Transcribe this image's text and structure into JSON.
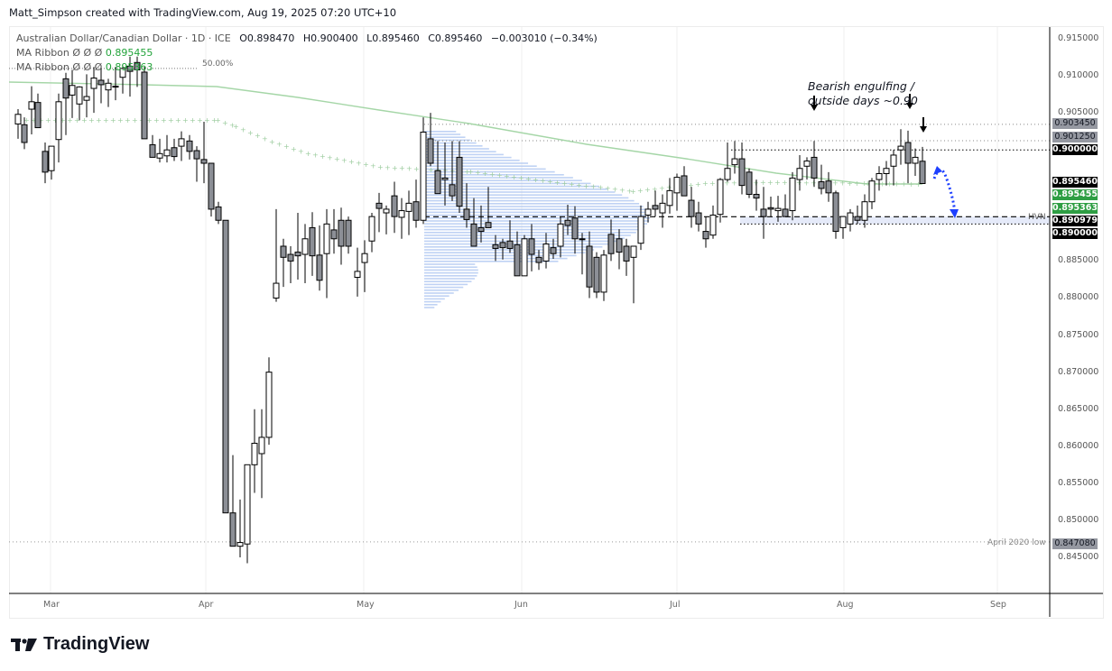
{
  "header": {
    "credit": "Matt_Simpson created with TradingView.com, Aug 19, 2025 07:20 UTC+10"
  },
  "legend": {
    "symbol": "Australian Dollar/Canadian Dollar · 1D · ICE",
    "open": "O0.898470",
    "high": "H0.900400",
    "low": "L0.895460",
    "close": "C0.895460",
    "change": "−0.003010 (−0.34%)",
    "ma1_label": "MA Ribbon  Ø  Ø  Ø",
    "ma1_value": "0.895455",
    "ma2_label": "MA Ribbon  Ø  Ø  Ø",
    "ma2_value": "0.895363",
    "fib_label": "50.00%"
  },
  "annotations": {
    "note_line1": "Bearish engulfing /",
    "note_line2": "outside days ~0.90",
    "hvn_label": "HVN",
    "april_low_label": "April 2020 low"
  },
  "price_axis": {
    "ticks": [
      "0.915000",
      "0.910000",
      "0.905000",
      "0.885000",
      "0.880000",
      "0.875000",
      "0.870000",
      "0.865000",
      "0.860000",
      "0.855000",
      "0.850000",
      "0.845000"
    ],
    "tags": [
      {
        "value": "0.903450",
        "style": "grey"
      },
      {
        "value": "0.901250",
        "style": "grey"
      },
      {
        "value": "0.900000",
        "style": "black"
      },
      {
        "value": "0.895460",
        "style": "black"
      },
      {
        "value": "0.895455",
        "style": "green"
      },
      {
        "value": "0.895363",
        "style": "green"
      },
      {
        "value": "0.890979",
        "style": "black"
      },
      {
        "value": "0.890000",
        "style": "black"
      },
      {
        "value": "0.847080",
        "style": "grey"
      }
    ]
  },
  "time_axis": {
    "months": [
      "Mar",
      "Apr",
      "May",
      "Jun",
      "Jul",
      "Aug",
      "Sep"
    ]
  },
  "footer": {
    "brand": "TradingView"
  },
  "colors": {
    "bull_body": "#ffffff",
    "bear_body": "#8c8f96",
    "outline": "#000000",
    "ma_line": "#a5d6a7",
    "volume_profile": "#aac3f0",
    "arrow_blue": "#1e40ff"
  },
  "chart_data": {
    "type": "candlestick",
    "title": "Australian Dollar/Canadian Dollar · 1D · ICE",
    "xlabel": "",
    "ylabel": "Price",
    "ylim": [
      0.8425,
      0.917
    ],
    "x_ticks": [
      "Mar",
      "Apr",
      "May",
      "Jun",
      "Jul",
      "Aug",
      "Sep"
    ],
    "last_ohlc": {
      "open": 0.89847,
      "high": 0.9004,
      "low": 0.89546,
      "close": 0.89546,
      "change": -0.00301,
      "change_pct": -0.34
    },
    "moving_averages": [
      {
        "name": "MA Ribbon (solid)",
        "value": 0.895455
      },
      {
        "name": "MA Ribbon (dotted)",
        "value": 0.895363
      }
    ],
    "horizontal_levels": [
      {
        "value": 0.90345,
        "style": "dotted"
      },
      {
        "value": 0.90125,
        "style": "dotted"
      },
      {
        "value": 0.9,
        "style": "dotted"
      },
      {
        "value": 0.890979,
        "style": "dashed",
        "label": "HVN"
      },
      {
        "value": 0.89,
        "style": "dotted"
      },
      {
        "value": 0.84708,
        "style": "dotted",
        "label": "April 2020 low"
      },
      {
        "value": 0.911,
        "style": "dotted",
        "label": "50.00%"
      }
    ],
    "candles": [
      [
        20,
        0.9035,
        0.9055,
        0.9015,
        0.9048
      ],
      [
        27,
        0.9034,
        0.9044,
        0.9001,
        0.901
      ],
      [
        35,
        0.9055,
        0.9086,
        0.9021,
        0.9065
      ],
      [
        42,
        0.9064,
        0.9076,
        0.903,
        0.903
      ],
      [
        50,
        0.8998,
        0.901,
        0.8955,
        0.897
      ],
      [
        57,
        0.8972,
        0.9002,
        0.896,
        0.9005
      ],
      [
        65,
        0.9014,
        0.9076,
        0.8983,
        0.9065
      ],
      [
        73,
        0.9096,
        0.9104,
        0.902,
        0.907
      ],
      [
        80,
        0.9074,
        0.9108,
        0.9043,
        0.9087
      ],
      [
        88,
        0.9062,
        0.9086,
        0.904,
        0.9085
      ],
      [
        96,
        0.9067,
        0.9102,
        0.9044,
        0.9072
      ],
      [
        104,
        0.9083,
        0.9112,
        0.905,
        0.9097
      ],
      [
        112,
        0.9094,
        0.911,
        0.9063,
        0.9088
      ],
      [
        120,
        0.9081,
        0.9096,
        0.9058,
        0.909
      ],
      [
        128,
        0.9085,
        0.9112,
        0.9067,
        0.9086
      ],
      [
        136,
        0.9098,
        0.9114,
        0.9076,
        0.911
      ],
      [
        144,
        0.9113,
        0.9126,
        0.9072,
        0.9106
      ],
      [
        152,
        0.9118,
        0.9126,
        0.9085,
        0.9108
      ],
      [
        160,
        0.9105,
        0.9112,
        0.9015,
        0.9015
      ],
      [
        169,
        0.9007,
        0.902,
        0.899,
        0.899
      ],
      [
        177,
        0.8989,
        0.9015,
        0.8983,
        0.8995
      ],
      [
        185,
        0.8992,
        0.902,
        0.8983,
        0.9
      ],
      [
        193,
        0.9003,
        0.9015,
        0.8985,
        0.8991
      ],
      [
        201,
        0.9005,
        0.9025,
        0.8985,
        0.9015
      ],
      [
        210,
        0.9012,
        0.902,
        0.8987,
        0.8998
      ],
      [
        218,
        0.8999,
        0.9005,
        0.8957,
        0.8988
      ],
      [
        226,
        0.8987,
        0.9038,
        0.8955,
        0.8982
      ],
      [
        234,
        0.8982,
        0.8982,
        0.891,
        0.892
      ],
      [
        242,
        0.8923,
        0.893,
        0.89,
        0.8905
      ],
      [
        250,
        0.8905,
        0.8905,
        0.851,
        0.851
      ],
      [
        258,
        0.851,
        0.8588,
        0.8473,
        0.8465
      ],
      [
        266,
        0.8465,
        0.8528,
        0.845,
        0.847
      ],
      [
        274,
        0.8468,
        0.856,
        0.8442,
        0.8575
      ],
      [
        282,
        0.8575,
        0.865,
        0.8537,
        0.8604
      ],
      [
        290,
        0.859,
        0.865,
        0.853,
        0.8612
      ],
      [
        298,
        0.8612,
        0.872,
        0.8602,
        0.87
      ],
      [
        306,
        0.88,
        0.892,
        0.8795,
        0.882
      ],
      [
        314,
        0.887,
        0.888,
        0.8815,
        0.8855
      ],
      [
        322,
        0.8859,
        0.887,
        0.882,
        0.885
      ],
      [
        330,
        0.8862,
        0.8915,
        0.8825,
        0.8857
      ],
      [
        338,
        0.8859,
        0.89,
        0.882,
        0.888
      ],
      [
        346,
        0.8895,
        0.8916,
        0.883,
        0.8857
      ],
      [
        354,
        0.8858,
        0.8898,
        0.881,
        0.8824
      ],
      [
        362,
        0.886,
        0.892,
        0.88,
        0.89
      ],
      [
        370,
        0.8892,
        0.892,
        0.886,
        0.888
      ],
      [
        378,
        0.8905,
        0.8922,
        0.8845,
        0.887
      ],
      [
        386,
        0.8905,
        0.891,
        0.886,
        0.887
      ],
      [
        396,
        0.8828,
        0.8868,
        0.8802,
        0.8836
      ],
      [
        404,
        0.8848,
        0.8878,
        0.8808,
        0.886
      ],
      [
        412,
        0.8877,
        0.8915,
        0.8862,
        0.891
      ],
      [
        420,
        0.8928,
        0.8942,
        0.8889,
        0.8921
      ],
      [
        428,
        0.8915,
        0.8925,
        0.8886,
        0.892
      ],
      [
        437,
        0.8938,
        0.8957,
        0.8888,
        0.891
      ],
      [
        445,
        0.8909,
        0.8935,
        0.888,
        0.8918
      ],
      [
        453,
        0.8917,
        0.8945,
        0.8885,
        0.8928
      ],
      [
        461,
        0.893,
        0.896,
        0.8895,
        0.8905
      ],
      [
        469,
        0.8905,
        0.9044,
        0.89,
        0.9024
      ],
      [
        477,
        0.9015,
        0.905,
        0.8978,
        0.8982
      ],
      [
        485,
        0.8972,
        0.9012,
        0.8942,
        0.8941
      ],
      [
        493,
        0.896,
        0.901,
        0.8925,
        0.8962
      ],
      [
        501,
        0.8953,
        0.9012,
        0.8931,
        0.8938
      ],
      [
        509,
        0.899,
        0.9012,
        0.8915,
        0.8924
      ],
      [
        517,
        0.892,
        0.8955,
        0.8895,
        0.8906
      ],
      [
        525,
        0.89,
        0.8935,
        0.8872,
        0.887
      ],
      [
        533,
        0.8895,
        0.8925,
        0.8875,
        0.889
      ],
      [
        541,
        0.8902,
        0.895,
        0.8895,
        0.8895
      ],
      [
        549,
        0.8872,
        0.8885,
        0.885,
        0.8867
      ],
      [
        557,
        0.8875,
        0.888,
        0.8852,
        0.8868
      ],
      [
        565,
        0.8877,
        0.8905,
        0.8861,
        0.8867
      ],
      [
        573,
        0.8872,
        0.889,
        0.883,
        0.883
      ],
      [
        581,
        0.883,
        0.8885,
        0.883,
        0.888
      ],
      [
        589,
        0.888,
        0.89,
        0.8836,
        0.8859
      ],
      [
        597,
        0.8855,
        0.8865,
        0.8838,
        0.8848
      ],
      [
        605,
        0.885,
        0.8888,
        0.884,
        0.8873
      ],
      [
        613,
        0.8868,
        0.888,
        0.8853,
        0.886
      ],
      [
        621,
        0.887,
        0.891,
        0.8855,
        0.89
      ],
      [
        629,
        0.8905,
        0.8926,
        0.8885,
        0.8898
      ],
      [
        637,
        0.8908,
        0.8924,
        0.886,
        0.888
      ],
      [
        645,
        0.888,
        0.8888,
        0.8832,
        0.888
      ],
      [
        653,
        0.887,
        0.889,
        0.88,
        0.8815
      ],
      [
        661,
        0.8855,
        0.8862,
        0.88,
        0.8808
      ],
      [
        669,
        0.8808,
        0.8865,
        0.8796,
        0.8858
      ],
      [
        677,
        0.8886,
        0.8906,
        0.885,
        0.886
      ],
      [
        686,
        0.888,
        0.8893,
        0.8839,
        0.8862
      ],
      [
        694,
        0.887,
        0.888,
        0.883,
        0.885
      ],
      [
        702,
        0.8855,
        0.887,
        0.8793,
        0.887
      ],
      [
        710,
        0.8874,
        0.8925,
        0.8865,
        0.891
      ],
      [
        718,
        0.8912,
        0.893,
        0.8902,
        0.892
      ],
      [
        726,
        0.8925,
        0.8945,
        0.891,
        0.892
      ],
      [
        734,
        0.8915,
        0.894,
        0.8895,
        0.8928
      ],
      [
        742,
        0.8925,
        0.8962,
        0.8914,
        0.8945
      ],
      [
        750,
        0.8942,
        0.8968,
        0.8918,
        0.8963
      ],
      [
        758,
        0.8965,
        0.8978,
        0.8945,
        0.8938
      ],
      [
        766,
        0.8932,
        0.895,
        0.8895,
        0.891
      ],
      [
        774,
        0.8915,
        0.893,
        0.889,
        0.89
      ],
      [
        782,
        0.889,
        0.891,
        0.8868,
        0.888
      ],
      [
        790,
        0.8885,
        0.8925,
        0.888,
        0.8912
      ],
      [
        798,
        0.8913,
        0.8962,
        0.8902,
        0.896
      ],
      [
        806,
        0.896,
        0.901,
        0.8957,
        0.8975
      ],
      [
        814,
        0.898,
        0.9012,
        0.8968,
        0.8988
      ],
      [
        822,
        0.8988,
        0.901,
        0.894,
        0.8952
      ],
      [
        830,
        0.897,
        0.8975,
        0.8935,
        0.894
      ],
      [
        838,
        0.894,
        0.896,
        0.8918,
        0.8935
      ],
      [
        846,
        0.892,
        0.895,
        0.888,
        0.891
      ],
      [
        854,
        0.8922,
        0.8937,
        0.891,
        0.892
      ],
      [
        862,
        0.8918,
        0.8938,
        0.8903,
        0.8921
      ],
      [
        870,
        0.892,
        0.894,
        0.8915,
        0.891
      ],
      [
        878,
        0.8918,
        0.897,
        0.8905,
        0.8962
      ],
      [
        886,
        0.896,
        0.8993,
        0.8945,
        0.8975
      ],
      [
        894,
        0.8978,
        0.899,
        0.896,
        0.8985
      ],
      [
        902,
        0.899,
        0.9012,
        0.895,
        0.8962
      ],
      [
        910,
        0.8957,
        0.898,
        0.894,
        0.8948
      ],
      [
        918,
        0.8958,
        0.897,
        0.893,
        0.8942
      ],
      [
        926,
        0.8942,
        0.8945,
        0.888,
        0.889
      ],
      [
        934,
        0.8895,
        0.8905,
        0.888,
        0.891
      ],
      [
        942,
        0.89,
        0.892,
        0.889,
        0.8915
      ],
      [
        950,
        0.891,
        0.8925,
        0.89,
        0.8905
      ],
      [
        958,
        0.8905,
        0.894,
        0.8895,
        0.893
      ],
      [
        966,
        0.893,
        0.8962,
        0.892,
        0.8958
      ],
      [
        974,
        0.896,
        0.8978,
        0.8945,
        0.8968
      ],
      [
        982,
        0.8968,
        0.8985,
        0.8952,
        0.8975
      ],
      [
        990,
        0.8978,
        0.9,
        0.8952,
        0.8993
      ],
      [
        998,
        0.9,
        0.9028,
        0.898,
        0.9005
      ],
      [
        1006,
        0.901,
        0.9026,
        0.8955,
        0.8982
      ],
      [
        1014,
        0.8982,
        0.9002,
        0.8965,
        0.899
      ],
      [
        1022,
        0.89847,
        0.9004,
        0.89546,
        0.89546
      ]
    ]
  }
}
